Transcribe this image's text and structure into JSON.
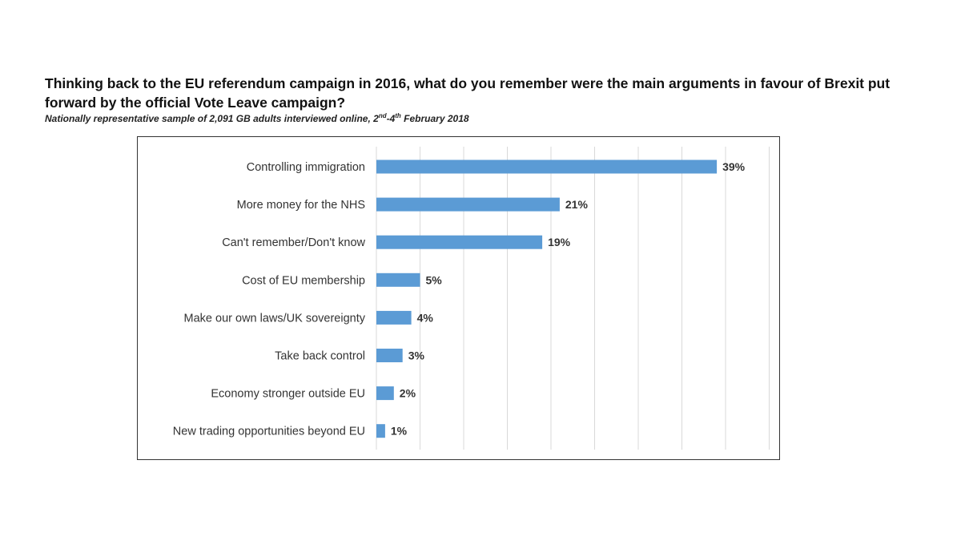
{
  "title": "Thinking back to the EU referendum campaign in 2016, what do you remember were the main arguments in favour of Brexit put forward by the official Vote Leave campaign?",
  "subtitle": {
    "prefix": "Nationally representative sample of 2,091 GB adults interviewed online, 2",
    "sup1": "nd",
    "middle": "-4",
    "sup2": "th",
    "suffix": " February 2018"
  },
  "chart_data": {
    "type": "bar",
    "orientation": "horizontal",
    "categories": [
      "Controlling immigration",
      "More money for the NHS",
      "Can't remember/Don't know",
      "Cost of EU membership",
      "Make our own laws/UK sovereignty",
      "Take back control",
      "Economy stronger outside EU",
      "New trading opportunities beyond EU"
    ],
    "values": [
      39,
      21,
      19,
      5,
      4,
      3,
      2,
      1
    ],
    "value_labels": [
      "39%",
      "21%",
      "19%",
      "5%",
      "4%",
      "3%",
      "2%",
      "1%"
    ],
    "xlim": [
      0,
      45
    ],
    "grid_step": 5,
    "grid": true,
    "bar_color": "#5b9bd5",
    "grid_color": "#d9d9d9",
    "title": "",
    "xlabel": "",
    "ylabel": ""
  }
}
